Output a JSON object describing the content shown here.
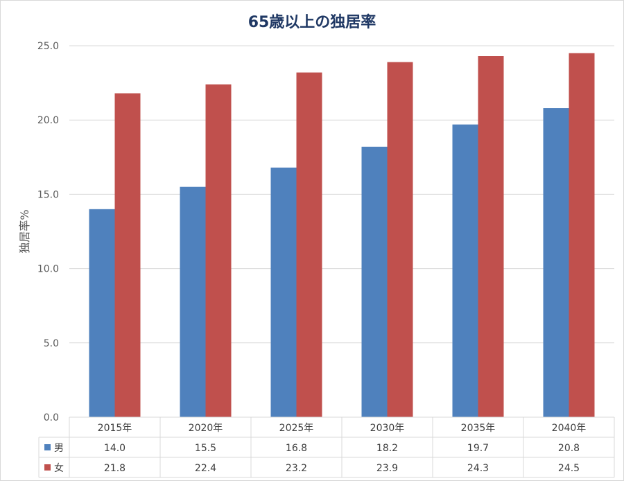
{
  "chart_data": {
    "type": "bar",
    "title": "65歳以上の独居率",
    "ylabel": "独居率%",
    "xlabel": "",
    "ylim": [
      0,
      25
    ],
    "yticks": [
      "0.0",
      "5.0",
      "10.0",
      "15.0",
      "20.0",
      "25.0"
    ],
    "grid": true,
    "legend": "data-table",
    "categories": [
      "2015年",
      "2020年",
      "2025年",
      "2030年",
      "2035年",
      "2040年"
    ],
    "series": [
      {
        "name": "男",
        "color": "#4F81BD",
        "values": [
          14.0,
          15.5,
          16.8,
          18.2,
          19.7,
          20.8
        ]
      },
      {
        "name": "女",
        "color": "#C0504D",
        "values": [
          21.8,
          22.4,
          23.2,
          23.9,
          24.3,
          24.5
        ]
      }
    ]
  }
}
